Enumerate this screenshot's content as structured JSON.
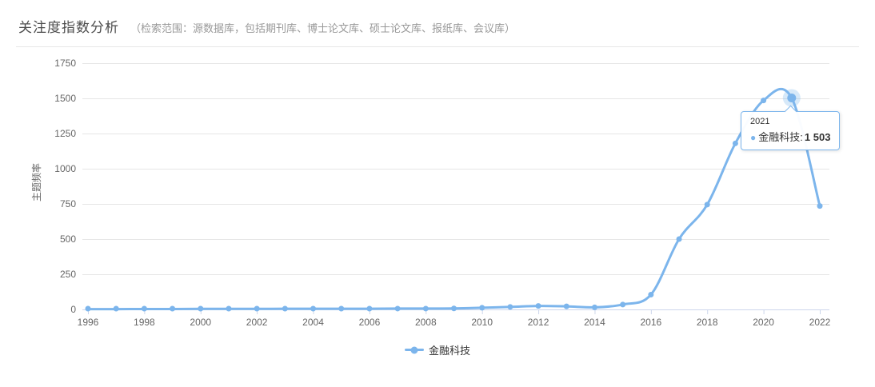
{
  "header": {
    "title": "关注度指数分析",
    "subtitle": "（检索范围：源数据库，包括期刊库、博士论文库、硕士论文库、报纸库、会议库）"
  },
  "chart_data": {
    "type": "line",
    "title": "",
    "xlabel": "",
    "ylabel": "主题频率",
    "x": [
      1996,
      1997,
      1998,
      1999,
      2000,
      2001,
      2002,
      2003,
      2004,
      2005,
      2006,
      2007,
      2008,
      2009,
      2010,
      2011,
      2012,
      2013,
      2014,
      2015,
      2016,
      2017,
      2018,
      2019,
      2020,
      2021,
      2022
    ],
    "series": [
      {
        "name": "金融科技",
        "values": [
          2,
          2,
          3,
          3,
          4,
          4,
          4,
          5,
          5,
          5,
          5,
          6,
          6,
          7,
          12,
          18,
          25,
          22,
          15,
          35,
          105,
          500,
          745,
          1180,
          1485,
          1503,
          735
        ]
      }
    ],
    "ylim": [
      0,
      1750
    ],
    "yticks": [
      0,
      250,
      500,
      750,
      1000,
      1250,
      1500,
      1750
    ],
    "xtick_labels": [
      "1996",
      "1998",
      "2000",
      "2002",
      "2004",
      "2006",
      "2008",
      "2010",
      "2012",
      "2014",
      "2016",
      "2018",
      "2020",
      "2022"
    ],
    "grid": true,
    "legend_position": "bottom",
    "highlight": {
      "x": 2021,
      "value": 1503
    }
  },
  "tooltip": {
    "title": "2021",
    "series_name": "金融科技",
    "separator": ":",
    "value_display": "1 503",
    "dot": "●"
  },
  "legend": {
    "items": [
      {
        "label": "金融科技"
      }
    ]
  },
  "colors": {
    "series": "#7cb5ec",
    "halo": "rgba(124,181,236,0.3)",
    "grid": "#e6e6e6",
    "axis": "#ccd6eb",
    "tick_label": "#666666",
    "title": "#4c4c4c",
    "subtitle": "#999999",
    "tooltip_border": "#7cb5ec"
  }
}
